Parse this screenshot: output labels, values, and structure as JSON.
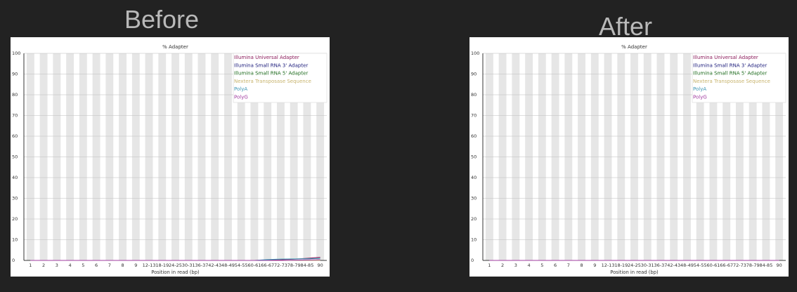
{
  "panels": {
    "before_label": "Before",
    "after_label": "After"
  },
  "chart_data": [
    {
      "type": "line",
      "panel": "Before",
      "title": "% Adapter",
      "xlabel": "Position in read (bp)",
      "ylabel": "",
      "ylim": [
        0,
        100
      ],
      "yticks": [
        0,
        10,
        20,
        30,
        40,
        50,
        60,
        70,
        80,
        90,
        100
      ],
      "categories": [
        "1",
        "2",
        "3",
        "4",
        "5",
        "6",
        "7",
        "8",
        "9",
        "12-13",
        "18-19",
        "24-25",
        "30-31",
        "36-37",
        "42-43",
        "48-49",
        "54-55",
        "60-61",
        "66-67",
        "72-73",
        "78-79",
        "84-85",
        "90"
      ],
      "grid": true,
      "legend_position": "top-right",
      "series": [
        {
          "name": "Illumina Universal Adapter",
          "color": "#8b1a5a",
          "values": [
            0,
            0,
            0,
            0,
            0,
            0,
            0,
            0,
            0,
            0,
            0,
            0,
            0,
            0,
            0,
            0,
            0,
            0,
            0.1,
            0.3,
            0.6,
            1.0,
            1.5
          ]
        },
        {
          "name": "Illumina Small RNA 3' Adapter",
          "color": "#1a1a7a",
          "values": [
            0,
            0,
            0,
            0,
            0,
            0,
            0,
            0,
            0,
            0,
            0,
            0,
            0,
            0,
            0,
            0,
            0,
            0,
            0,
            0,
            0,
            0,
            0
          ]
        },
        {
          "name": "Illumina Small RNA 5' Adapter",
          "color": "#1e6b1e",
          "values": [
            0,
            0,
            0,
            0,
            0,
            0,
            0,
            0,
            0,
            0,
            0,
            0,
            0,
            0,
            0,
            0,
            0,
            0,
            0,
            0,
            0,
            0,
            0
          ]
        },
        {
          "name": "Nextera Transposase Sequence",
          "color": "#c8b46e",
          "values": [
            0,
            0,
            0,
            0,
            0,
            0,
            0,
            0,
            0,
            0,
            0,
            0,
            0,
            0,
            0,
            0,
            0,
            0,
            0,
            0,
            0,
            0,
            0
          ]
        },
        {
          "name": "PolyA",
          "color": "#3c96b4",
          "values": [
            0,
            0,
            0,
            0,
            0,
            0,
            0,
            0,
            0,
            0,
            0,
            0,
            0,
            0,
            0,
            0,
            0,
            0,
            0.4,
            0.6,
            0.7,
            0.8,
            0.9
          ]
        },
        {
          "name": "PolyG",
          "color": "#a03ca0",
          "values": [
            0,
            0,
            0,
            0,
            0,
            0,
            0,
            0,
            0,
            0,
            0,
            0,
            0,
            0,
            0,
            0,
            0,
            0,
            0,
            0,
            0.1,
            0.2,
            0.3
          ]
        }
      ]
    },
    {
      "type": "line",
      "panel": "After",
      "title": "% Adapter",
      "xlabel": "Position in read (bp)",
      "ylabel": "",
      "ylim": [
        0,
        100
      ],
      "yticks": [
        0,
        10,
        20,
        30,
        40,
        50,
        60,
        70,
        80,
        90,
        100
      ],
      "categories": [
        "1",
        "2",
        "3",
        "4",
        "5",
        "6",
        "7",
        "8",
        "9",
        "12-13",
        "18-19",
        "24-25",
        "30-31",
        "36-37",
        "42-43",
        "48-49",
        "54-55",
        "60-61",
        "66-67",
        "72-73",
        "78-79",
        "84-85",
        "90"
      ],
      "grid": true,
      "legend_position": "top-right",
      "series": [
        {
          "name": "Illumina Universal Adapter",
          "color": "#8b1a5a",
          "values": [
            0,
            0,
            0,
            0,
            0,
            0,
            0,
            0,
            0,
            0,
            0,
            0,
            0,
            0,
            0,
            0,
            0,
            0,
            0,
            0,
            0,
            0,
            0
          ]
        },
        {
          "name": "Illumina Small RNA 3' Adapter",
          "color": "#1a1a7a",
          "values": [
            0,
            0,
            0,
            0,
            0,
            0,
            0,
            0,
            0,
            0,
            0,
            0,
            0,
            0,
            0,
            0,
            0,
            0,
            0,
            0,
            0,
            0,
            0
          ]
        },
        {
          "name": "Illumina Small RNA 5' Adapter",
          "color": "#1e6b1e",
          "values": [
            0,
            0,
            0,
            0,
            0,
            0,
            0,
            0,
            0,
            0,
            0,
            0,
            0,
            0,
            0,
            0,
            0,
            0,
            0,
            0,
            0,
            0,
            0
          ]
        },
        {
          "name": "Nextera Transposase Sequence",
          "color": "#c8b46e",
          "values": [
            0,
            0,
            0,
            0,
            0,
            0,
            0,
            0,
            0,
            0,
            0,
            0,
            0,
            0,
            0,
            0,
            0,
            0,
            0,
            0,
            0,
            0,
            0
          ]
        },
        {
          "name": "PolyA",
          "color": "#3c96b4",
          "values": [
            0,
            0,
            0,
            0,
            0,
            0,
            0,
            0,
            0,
            0,
            0,
            0,
            0,
            0,
            0,
            0,
            0,
            0,
            0,
            0,
            0,
            0,
            0
          ]
        },
        {
          "name": "PolyG",
          "color": "#a03ca0",
          "values": [
            0,
            0,
            0,
            0,
            0,
            0,
            0,
            0,
            0,
            0,
            0,
            0,
            0,
            0,
            0,
            0,
            0,
            0,
            0,
            0,
            0,
            0,
            0
          ]
        }
      ]
    }
  ]
}
